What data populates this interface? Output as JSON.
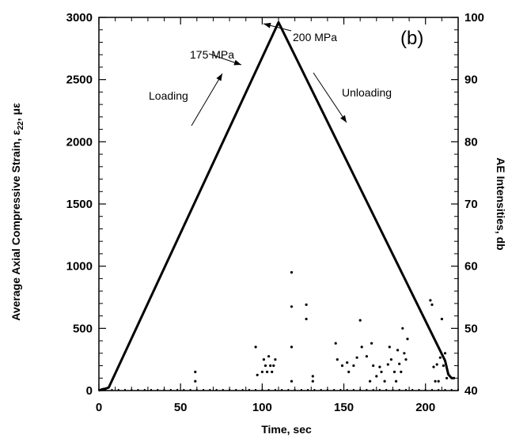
{
  "chart_data": {
    "type": "scatter",
    "panel_label": "(b)",
    "xlabel": "Time, sec",
    "ylabel_left": "Average Axial Compressive Strain, ε",
    "ylabel_left_subscript": "22",
    "ylabel_left_unit": ", με",
    "ylabel_right": "AE Intensities, db",
    "xlim": [
      0,
      220
    ],
    "ylim_left": [
      0,
      3000
    ],
    "ylim_right": [
      40,
      100
    ],
    "x_ticks": [
      0,
      50,
      100,
      150,
      200
    ],
    "y_left_ticks": [
      0,
      500,
      1000,
      1500,
      2000,
      2500,
      3000
    ],
    "y_right_ticks": [
      40,
      50,
      60,
      70,
      80,
      90,
      100
    ],
    "annotations": [
      {
        "text": "175 MPa",
        "x": 106,
        "y": 2620
      },
      {
        "text": "200 MPa",
        "x": 110,
        "y": 2950
      },
      {
        "text": "Loading",
        "x": 78,
        "y": 2400
      },
      {
        "text": "Unloading",
        "x": 150,
        "y": 2400
      }
    ],
    "series": [
      {
        "role": "strain",
        "axis": "left",
        "style": "line",
        "x": [
          0,
          2,
          4,
          6,
          110,
          212,
          214,
          216,
          218
        ],
        "y": [
          0,
          10,
          15,
          25,
          2960,
          240,
          130,
          100,
          100
        ]
      },
      {
        "role": "ae_intensity",
        "axis": "right",
        "style": "points",
        "x": [
          59,
          59,
          96,
          97,
          100,
          101,
          102,
          103,
          104,
          105,
          106,
          107,
          108,
          118,
          118,
          118,
          118,
          127,
          127,
          131,
          131,
          145,
          146,
          149,
          152,
          153,
          156,
          158,
          160,
          161,
          164,
          166,
          167,
          168,
          170,
          172,
          173,
          175,
          177,
          178,
          179,
          181,
          182,
          183,
          184,
          185,
          186,
          187,
          188,
          189,
          203,
          204,
          205,
          206,
          207,
          208,
          209,
          210,
          211,
          212,
          213
        ],
        "y": [
          43,
          41.5,
          47,
          42.5,
          43,
          45,
          44,
          43,
          45.5,
          44,
          43,
          44,
          45,
          59,
          53.5,
          47,
          41.5,
          53.8,
          51.5,
          42.3,
          41.5,
          47.6,
          45,
          44,
          44.5,
          43,
          44,
          45.3,
          51.3,
          47,
          45.5,
          41.5,
          47.6,
          44,
          42.3,
          43.8,
          43,
          41.5,
          44.2,
          47,
          45,
          43,
          41.5,
          46.5,
          44.3,
          43,
          50,
          46,
          45,
          48.3,
          54.5,
          53.8,
          43.8,
          41.5,
          44.2,
          41.5,
          45.3,
          51.5,
          44,
          46,
          42
        ]
      }
    ]
  }
}
